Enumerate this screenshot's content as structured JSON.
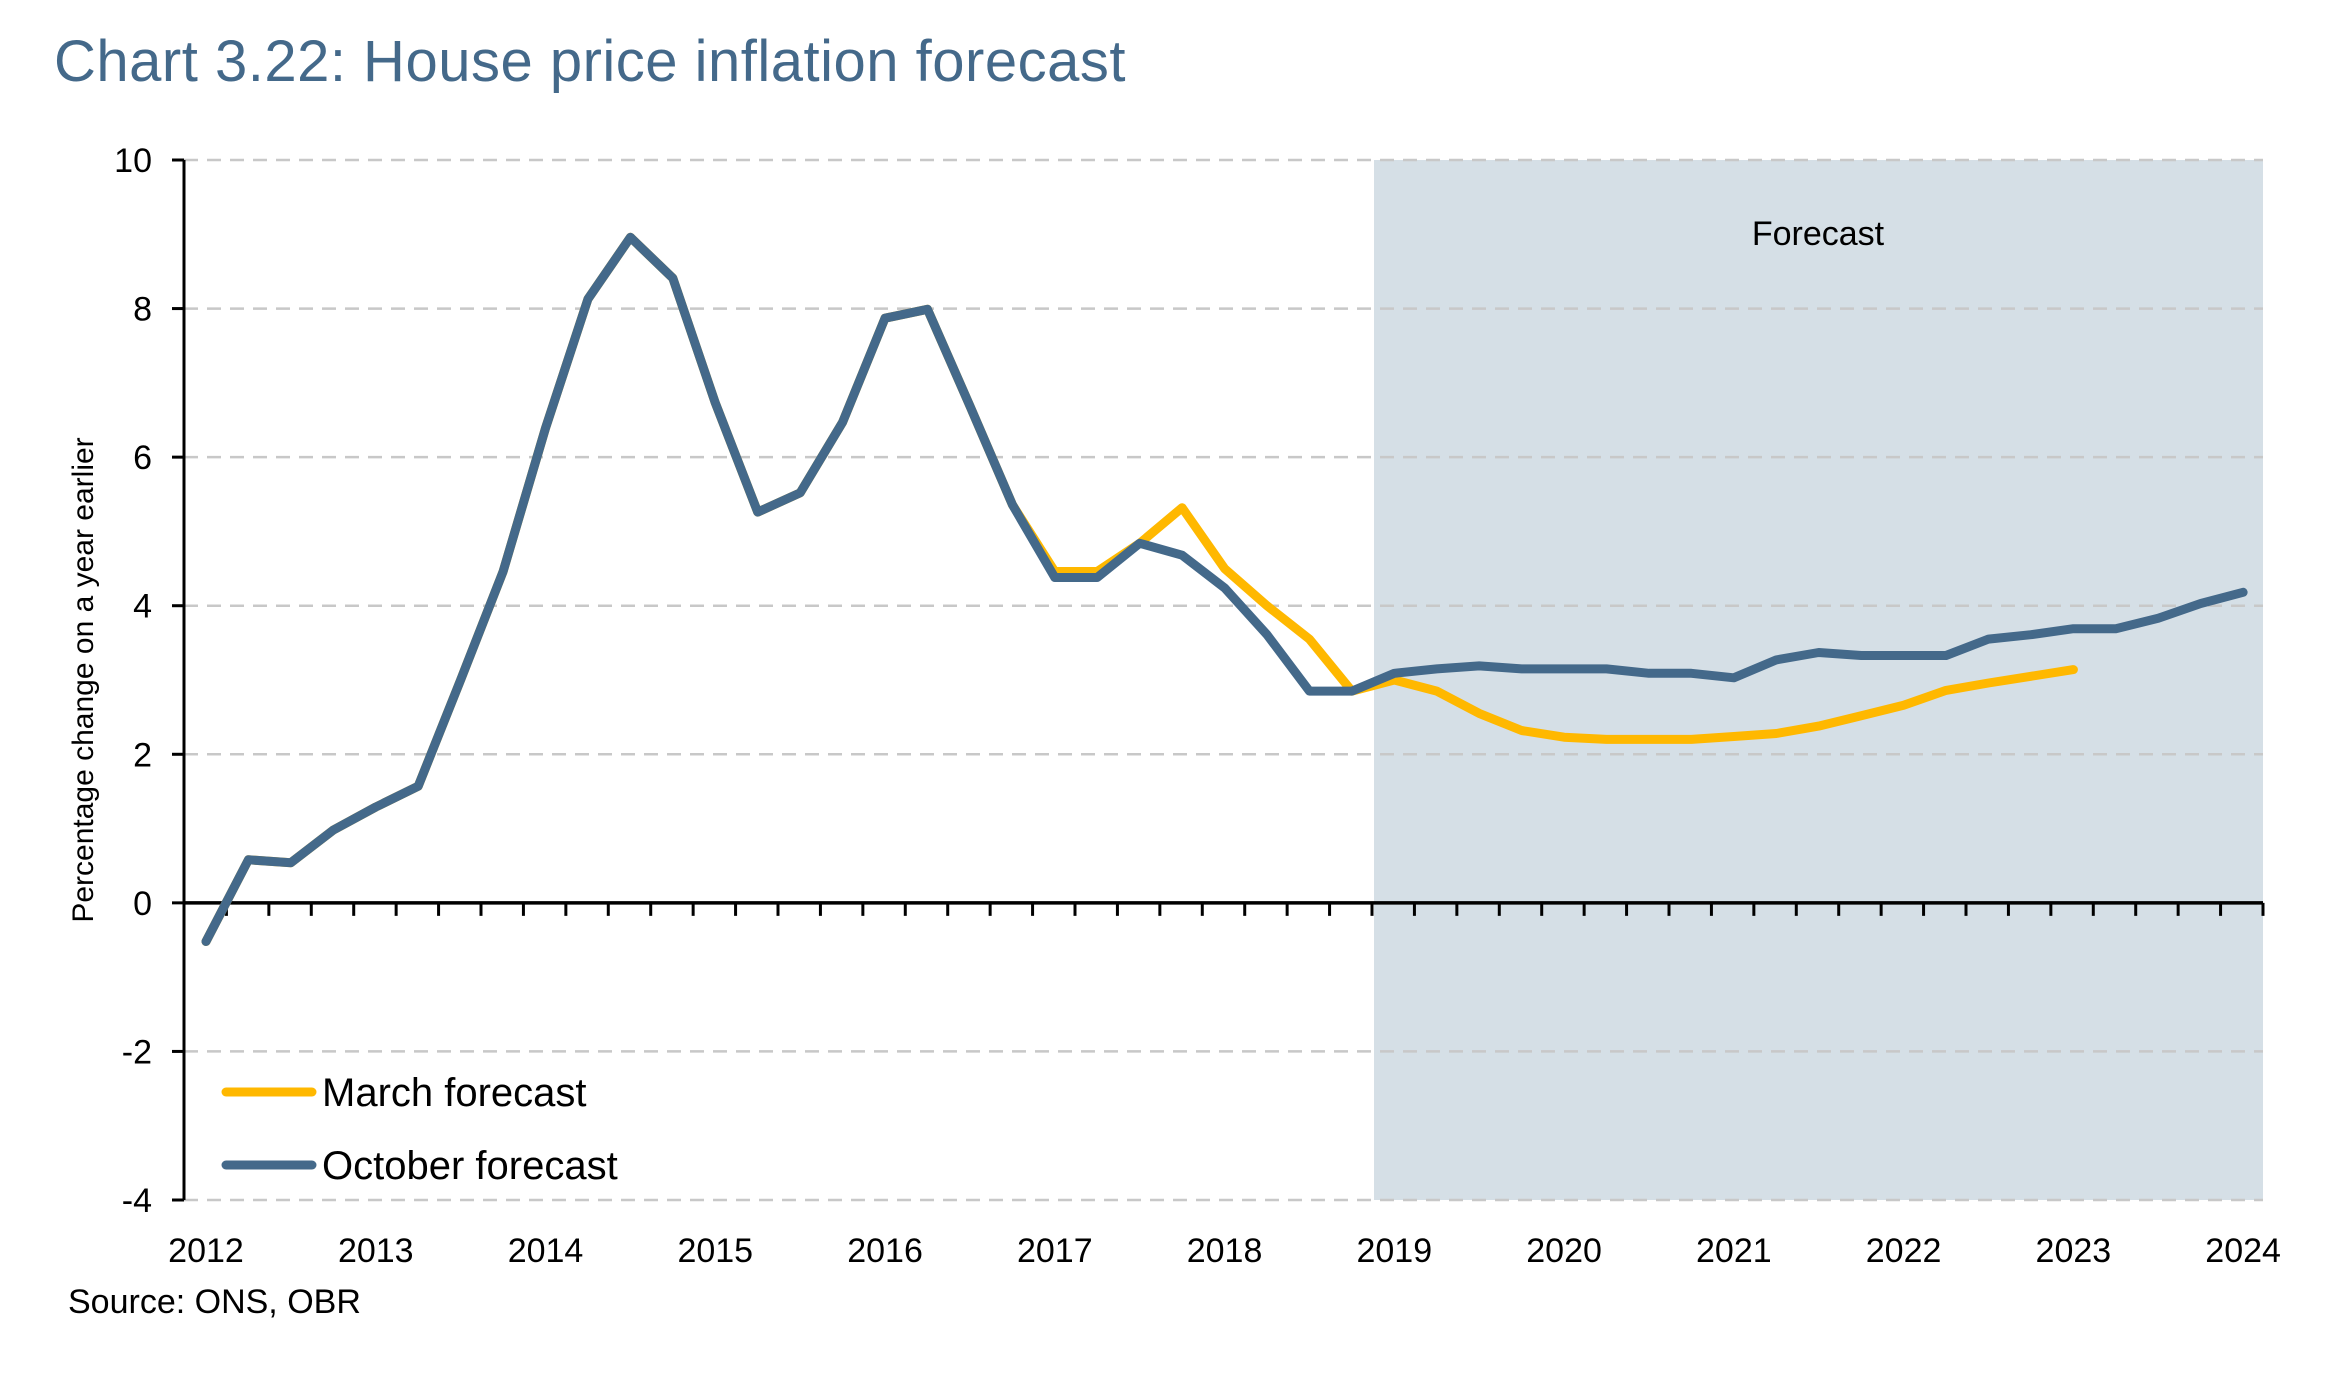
{
  "chart_data": {
    "type": "line",
    "title": "Chart 3.22: House price inflation forecast",
    "xlabel": "",
    "ylabel": "Percentage change on a year earlier",
    "ylim": [
      -4,
      10
    ],
    "yticks": [
      -4,
      -2,
      0,
      2,
      4,
      6,
      8,
      10
    ],
    "ytick_labels": [
      "-4",
      "-2",
      "0",
      "2",
      "4",
      "6",
      "8",
      "10"
    ],
    "x_frequency": "quarterly",
    "x_start": "2012 Q1",
    "xtick_labels": [
      "2012",
      "2013",
      "2014",
      "2015",
      "2016",
      "2017",
      "2018",
      "2019",
      "2020",
      "2021",
      "2022",
      "2023",
      "2024"
    ],
    "grid": true,
    "shaded_region": {
      "label": "Forecast",
      "from_quarter_index": 27.5,
      "to_quarter_index": 49,
      "color": "#d5dfe6"
    },
    "legend_position": "bottom-left",
    "series": [
      {
        "name": "March forecast",
        "color": "#ffb800",
        "values": [
          -0.52,
          0.58,
          0.54,
          0.98,
          1.29,
          1.57,
          3.0,
          4.46,
          6.39,
          8.13,
          8.96,
          8.41,
          6.73,
          5.26,
          5.52,
          6.47,
          7.87,
          7.99,
          6.69,
          5.36,
          4.46,
          4.46,
          4.84,
          5.32,
          4.5,
          4.0,
          3.55,
          2.85,
          3.0,
          2.85,
          2.55,
          2.32,
          2.23,
          2.2,
          2.2,
          2.2,
          2.24,
          2.28,
          2.38,
          2.52,
          2.66,
          2.86,
          2.96,
          3.05,
          3.14
        ]
      },
      {
        "name": "October forecast",
        "color": "#44698a",
        "values": [
          -0.52,
          0.58,
          0.54,
          0.98,
          1.29,
          1.57,
          3.0,
          4.46,
          6.39,
          8.13,
          8.96,
          8.41,
          6.73,
          5.26,
          5.52,
          6.47,
          7.87,
          7.99,
          6.69,
          5.36,
          4.38,
          4.38,
          4.84,
          4.68,
          4.24,
          3.61,
          2.85,
          2.85,
          3.09,
          3.15,
          3.19,
          3.15,
          3.15,
          3.15,
          3.09,
          3.09,
          3.03,
          3.27,
          3.37,
          3.33,
          3.33,
          3.33,
          3.55,
          3.61,
          3.69,
          3.69,
          3.83,
          4.03,
          4.18
        ]
      }
    ],
    "source": "Source: ONS, OBR"
  }
}
